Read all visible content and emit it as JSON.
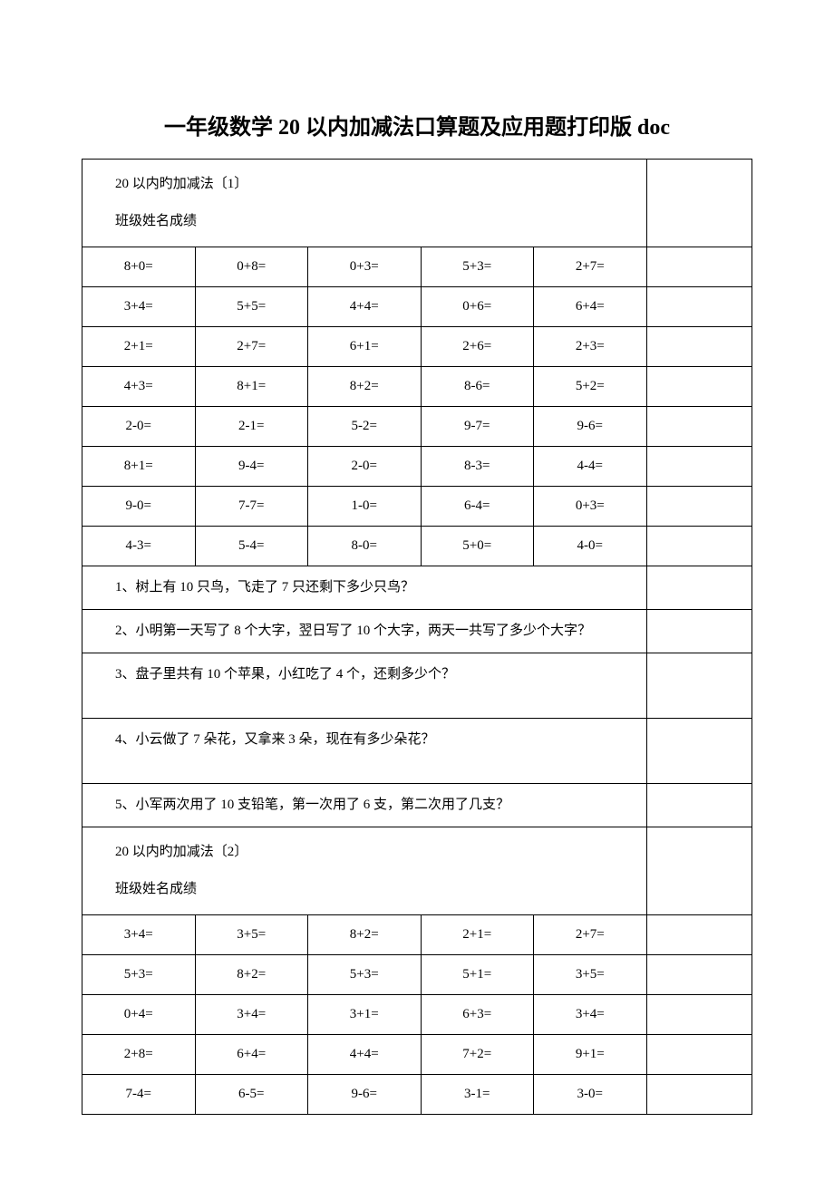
{
  "title": "一年级数学 20 以内加减法口算题及应用题打印版 doc",
  "section1": {
    "heading": "20 以内旳加减法〔1〕",
    "subheading": "班级姓名成绩",
    "rows": [
      [
        "8+0=",
        "0+8=",
        "0+3=",
        "5+3=",
        "2+7="
      ],
      [
        "3+4=",
        "5+5=",
        "4+4=",
        "0+6=",
        "6+4="
      ],
      [
        "2+1=",
        "2+7=",
        "6+1=",
        "2+6=",
        "2+3="
      ],
      [
        "4+3=",
        "8+1=",
        "8+2=",
        "8-6=",
        "5+2="
      ],
      [
        "2-0=",
        "2-1=",
        "5-2=",
        "9-7=",
        "9-6="
      ],
      [
        "8+1=",
        "9-4=",
        "2-0=",
        "8-3=",
        "4-4="
      ],
      [
        "9-0=",
        "7-7=",
        "1-0=",
        "6-4=",
        "0+3="
      ],
      [
        "4-3=",
        "5-4=",
        "8-0=",
        "5+0=",
        "4-0="
      ]
    ],
    "word_problems": [
      "1、树上有 10 只鸟，飞走了 7 只还剩下多少只鸟？",
      "2、小明第一天写了 8 个大字，翌日写了 10 个大字，两天一共写了多少个大字？",
      "3、盘子里共有 10 个苹果，小红吃了 4 个，还剩多少个？",
      "4、小云做了 7 朵花，又拿来 3 朵，现在有多少朵花？",
      "5、小军两次用了 10 支铅笔，第一次用了 6 支，第二次用了几支？"
    ]
  },
  "section2": {
    "heading": "20 以内旳加减法〔2〕",
    "subheading": "班级姓名成绩",
    "rows": [
      [
        "3+4=",
        "3+5=",
        "8+2=",
        "2+1=",
        "2+7="
      ],
      [
        "5+3=",
        "8+2=",
        "5+3=",
        "5+1=",
        "3+5="
      ],
      [
        "0+4=",
        "3+4=",
        "3+1=",
        "6+3=",
        "3+4="
      ],
      [
        "2+8=",
        "6+4=",
        "4+4=",
        "7+2=",
        "9+1="
      ],
      [
        "7-4=",
        "6-5=",
        "9-6=",
        "3-1=",
        "3-0="
      ]
    ]
  }
}
